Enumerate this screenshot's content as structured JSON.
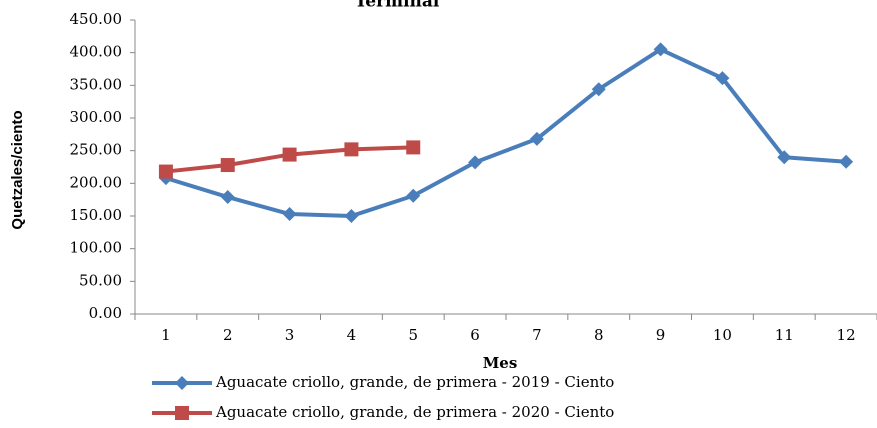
{
  "chart_data": {
    "type": "line",
    "title": "Terminal",
    "x_label": "Mes",
    "y_label": "Quetzales/ciento",
    "categories": [
      "1",
      "2",
      "3",
      "4",
      "5",
      "6",
      "7",
      "8",
      "9",
      "10",
      "11",
      "12"
    ],
    "series": [
      {
        "name": "Aguacate criollo, grande, de primera - 2019 - Ciento",
        "color": "#4a7ebb",
        "marker": "diamond",
        "values": [
          208,
          179,
          153,
          150,
          181,
          232,
          268,
          344,
          405,
          361,
          240,
          233
        ]
      },
      {
        "name": "Aguacate criollo, grande, de primera - 2020 - Ciento",
        "color": "#be4b48",
        "marker": "square",
        "values": [
          218,
          228,
          244,
          252,
          255,
          null,
          null,
          null,
          null,
          null,
          null,
          null
        ]
      }
    ],
    "ylim": [
      0,
      450
    ],
    "yticks": [
      {
        "value": 0,
        "label": "0.00"
      },
      {
        "value": 50,
        "label": "50.00"
      },
      {
        "value": 100,
        "label": "100.00"
      },
      {
        "value": 150,
        "label": "150.00"
      },
      {
        "value": 200,
        "label": "200.00"
      },
      {
        "value": 250,
        "label": "250.00"
      },
      {
        "value": 300,
        "label": "300.00"
      },
      {
        "value": 350,
        "label": "350.00"
      },
      {
        "value": 400,
        "label": "400.00"
      },
      {
        "value": 450,
        "label": "450.00"
      }
    ],
    "grid": false,
    "legend": "bottom"
  }
}
